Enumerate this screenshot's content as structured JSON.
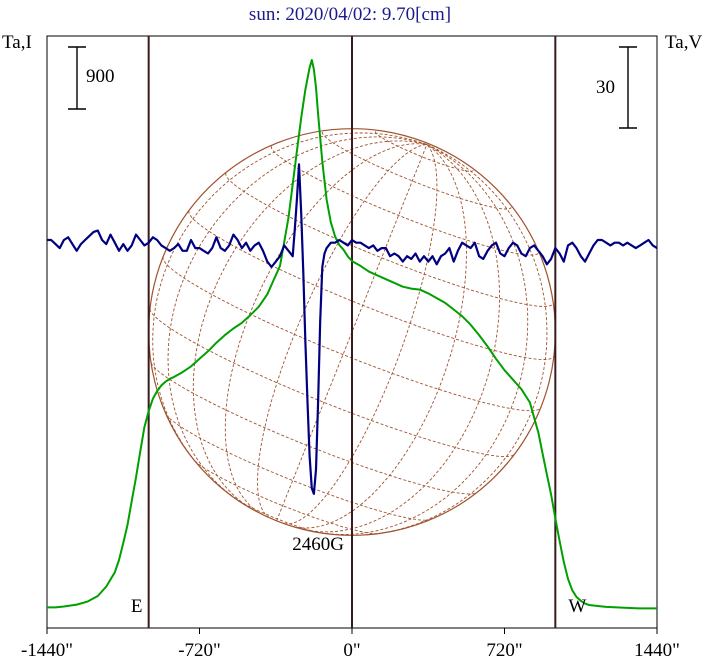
{
  "chart_data": {
    "type": "line",
    "title": "sun: 2020/04/02: 9.70[cm]",
    "left_axis_label": "Ta,I",
    "right_axis_label": "Ta,V",
    "left_scale_bar": "900",
    "right_scale_bar": "30",
    "x_unit": "arcsec",
    "xlim": [
      -1440,
      1440
    ],
    "x_ticks": [
      {
        "value": -1440,
        "label": "-1440\""
      },
      {
        "value": -720,
        "label": "-720\""
      },
      {
        "value": 0,
        "label": "0\""
      },
      {
        "value": 720,
        "label": "720\""
      },
      {
        "value": 1440,
        "label": "1440\""
      }
    ],
    "limb_lines": [
      -960,
      0,
      960
    ],
    "limb_labels": {
      "east": "E",
      "west": "W"
    },
    "annotation": {
      "text": "2460G",
      "x": -160
    },
    "grid": false,
    "colors": {
      "intensity": "#00a000",
      "polarization": "#000080",
      "disk": "#a0522d",
      "limb_line": "#3a1a1a"
    },
    "series": [
      {
        "key": "intensity",
        "x": [
          -1440,
          -1400,
          -1360,
          -1300,
          -1250,
          -1200,
          -1160,
          -1120,
          -1100,
          -1080,
          -1060,
          -1040,
          -1020,
          -1000,
          -980,
          -960,
          -940,
          -920,
          -900,
          -880,
          -860,
          -840,
          -800,
          -760,
          -720,
          -680,
          -640,
          -600,
          -560,
          -520,
          -480,
          -440,
          -400,
          -370,
          -340,
          -320,
          -300,
          -280,
          -260,
          -240,
          -220,
          -200,
          -190,
          -180,
          -170,
          -160,
          -140,
          -120,
          -100,
          -80,
          -60,
          -40,
          -20,
          0,
          40,
          80,
          120,
          160,
          200,
          240,
          280,
          320,
          360,
          400,
          440,
          480,
          520,
          560,
          600,
          640,
          680,
          720,
          760,
          800,
          840,
          880,
          900,
          920,
          940,
          960,
          980,
          1000,
          1020,
          1040,
          1060,
          1080,
          1100,
          1120,
          1160,
          1200,
          1250,
          1300,
          1360,
          1400,
          1440
        ],
        "values": [
          80,
          80,
          90,
          110,
          140,
          200,
          300,
          450,
          580,
          760,
          950,
          1200,
          1450,
          1720,
          1980,
          2150,
          2280,
          2360,
          2420,
          2460,
          2490,
          2510,
          2560,
          2620,
          2700,
          2780,
          2870,
          2950,
          3020,
          3080,
          3160,
          3250,
          3380,
          3530,
          3680,
          3930,
          4190,
          4540,
          4890,
          5240,
          5540,
          5770,
          5850,
          5750,
          5560,
          5280,
          4780,
          4380,
          4140,
          3990,
          3900,
          3850,
          3780,
          3730,
          3680,
          3620,
          3580,
          3540,
          3500,
          3460,
          3440,
          3430,
          3390,
          3340,
          3290,
          3220,
          3150,
          3060,
          2950,
          2830,
          2700,
          2580,
          2480,
          2380,
          2240,
          1920,
          1700,
          1480,
          1270,
          1020,
          780,
          560,
          380,
          260,
          190,
          150,
          120,
          105,
          95,
          85,
          80,
          75,
          70,
          70,
          70
        ]
      },
      {
        "key": "polarization",
        "x": [
          -1440,
          -1420,
          -1400,
          -1380,
          -1360,
          -1340,
          -1320,
          -1300,
          -1280,
          -1260,
          -1240,
          -1220,
          -1200,
          -1180,
          -1160,
          -1140,
          -1120,
          -1100,
          -1080,
          -1060,
          -1040,
          -1020,
          -1000,
          -980,
          -960,
          -940,
          -920,
          -900,
          -880,
          -860,
          -840,
          -820,
          -800,
          -780,
          -760,
          -740,
          -720,
          -700,
          -680,
          -660,
          -640,
          -620,
          -600,
          -580,
          -560,
          -540,
          -520,
          -500,
          -480,
          -460,
          -440,
          -420,
          -400,
          -380,
          -360,
          -340,
          -320,
          -300,
          -280,
          -270,
          -260,
          -250,
          -240,
          -230,
          -220,
          -210,
          -200,
          -190,
          -180,
          -170,
          -160,
          -150,
          -140,
          -130,
          -120,
          -110,
          -100,
          -90,
          -80,
          -60,
          -40,
          -20,
          0,
          20,
          40,
          60,
          80,
          100,
          120,
          140,
          160,
          180,
          200,
          220,
          240,
          260,
          280,
          300,
          320,
          340,
          360,
          380,
          400,
          420,
          440,
          460,
          480,
          500,
          520,
          540,
          560,
          580,
          600,
          620,
          640,
          660,
          680,
          700,
          720,
          740,
          760,
          780,
          800,
          820,
          840,
          860,
          880,
          900,
          920,
          940,
          960,
          980,
          1000,
          1020,
          1040,
          1060,
          1080,
          1100,
          1120,
          1140,
          1160,
          1180,
          1200,
          1220,
          1240,
          1260,
          1280,
          1300,
          1320,
          1340,
          1360,
          1380,
          1400,
          1420,
          1440
        ],
        "values": [
          0,
          0,
          -1.5,
          -3,
          0,
          1,
          -1.5,
          -4,
          -1.5,
          0,
          1.5,
          3,
          3.5,
          0,
          -1.5,
          2,
          -1,
          -4,
          -1.5,
          -4,
          -2,
          2,
          0,
          -2,
          -1,
          1,
          0,
          -2,
          -3,
          -4,
          -3,
          -1.5,
          -4,
          -4,
          0,
          -3,
          -3,
          -4,
          -5,
          -3,
          1,
          -3,
          -4,
          -2,
          2,
          0,
          -3,
          -1,
          -4,
          -2,
          -1,
          -4,
          -8,
          -10,
          -8,
          -6,
          -2,
          -4,
          -6,
          4,
          15,
          28,
          10,
          -12,
          -38,
          -60,
          -80,
          -92,
          -94,
          -85,
          -60,
          -30,
          -10,
          -5,
          -3,
          -2,
          -1,
          -1,
          -1,
          0,
          -1,
          -2,
          0,
          -1,
          -1,
          -2,
          -3,
          -2,
          -4,
          -3,
          -3,
          -6,
          -5,
          -6,
          -8,
          -6,
          -7,
          -5,
          -8,
          -6,
          -8,
          -6,
          -9,
          -6,
          -5,
          -3,
          -8,
          -4,
          -1,
          -2,
          -3,
          -1,
          -6,
          -7,
          -4,
          -2,
          -1,
          -5,
          -6,
          -3,
          -1,
          -2,
          -5,
          -6,
          -3,
          -2,
          -4,
          -6,
          -9,
          -7,
          -3,
          -5,
          -8,
          -2,
          -1,
          -3,
          -6,
          -8,
          -5,
          -2,
          0,
          0,
          -1,
          -2,
          -1,
          -1,
          -2,
          -1,
          -2,
          -3,
          -2,
          -1,
          0,
          -2,
          -3
        ]
      }
    ]
  }
}
